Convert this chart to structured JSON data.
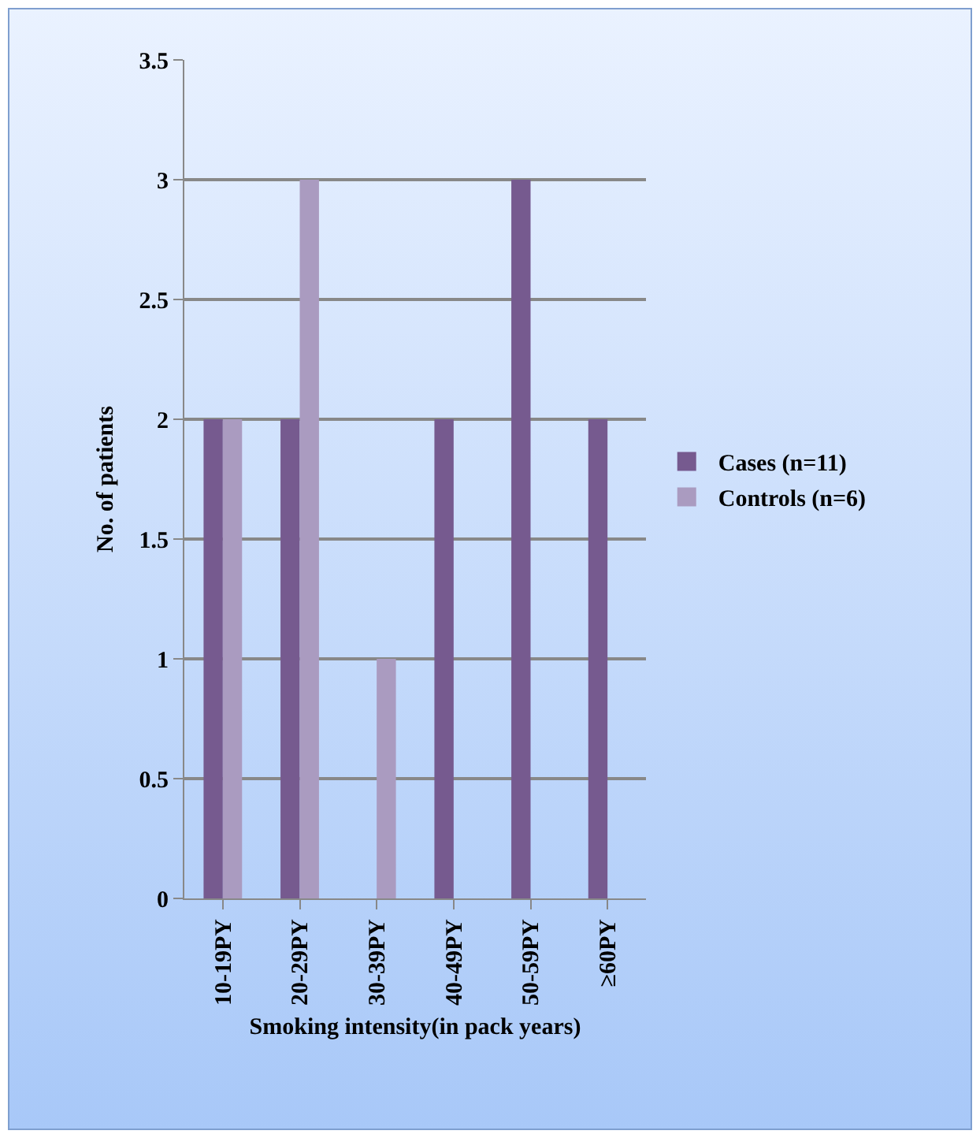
{
  "chart_data": {
    "type": "bar",
    "xlabel": "Smoking intensity(in pack years)",
    "ylabel": "No. of patients",
    "categories": [
      "10-19PY",
      "20-29PY",
      "30-39PY",
      "40-49PY",
      "50-59PY",
      "≥60PY"
    ],
    "series": [
      {
        "name": "Cases (n=11)",
        "color": "#765a8f",
        "values": [
          2,
          2,
          0,
          2,
          3,
          2
        ]
      },
      {
        "name": "Controls (n=6)",
        "color": "#aa9bc0",
        "values": [
          2,
          3,
          1,
          0,
          0,
          0
        ]
      }
    ],
    "ylim": [
      0,
      3.5
    ],
    "yticks": [
      0,
      0.5,
      1,
      1.5,
      2,
      2.5,
      3,
      3.5
    ],
    "grid": "y",
    "legend": "right"
  }
}
